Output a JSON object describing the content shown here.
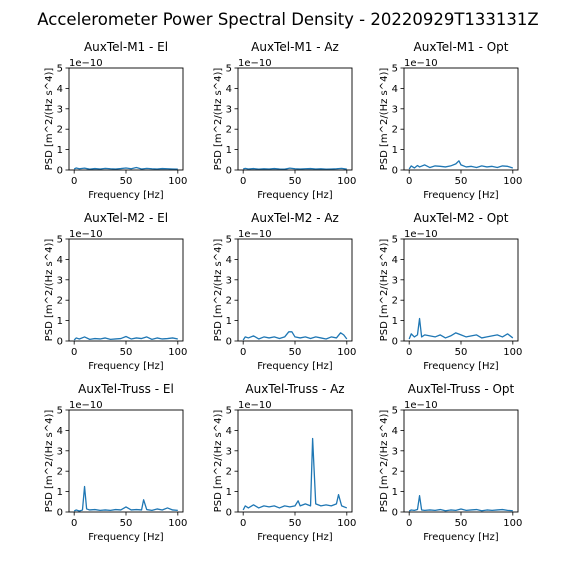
{
  "figure": {
    "title": "Accelerometer Power Spectral Density - 20220929T133131Z",
    "line_color": "#1f77b4"
  },
  "chart_data": [
    {
      "type": "line",
      "title": "AuxTel-M1 - El",
      "xlabel": "Frequency [Hz]",
      "ylabel": "PSD [m^2/(Hz s^4)]",
      "y_offset_label": "1e−10",
      "xlim": [
        -5,
        105
      ],
      "ylim": [
        0,
        5
      ],
      "xticks": [
        0,
        50,
        100
      ],
      "yticks": [
        0,
        1,
        2,
        3,
        4,
        5
      ],
      "x": [
        0,
        2,
        5,
        10,
        15,
        20,
        25,
        30,
        35,
        40,
        45,
        50,
        55,
        60,
        65,
        70,
        75,
        80,
        85,
        90,
        95,
        100
      ],
      "y": [
        0.05,
        0.1,
        0.06,
        0.09,
        0.04,
        0.07,
        0.05,
        0.08,
        0.06,
        0.05,
        0.07,
        0.1,
        0.06,
        0.12,
        0.05,
        0.08,
        0.06,
        0.05,
        0.07,
        0.06,
        0.05,
        0.04
      ]
    },
    {
      "type": "line",
      "title": "AuxTel-M1 - Az",
      "xlabel": "Frequency [Hz]",
      "ylabel": "PSD [m^2/(Hz s^4)]",
      "y_offset_label": "1e−10",
      "xlim": [
        -5,
        105
      ],
      "ylim": [
        0,
        5
      ],
      "xticks": [
        0,
        50,
        100
      ],
      "yticks": [
        0,
        1,
        2,
        3,
        4,
        5
      ],
      "x": [
        0,
        2,
        5,
        10,
        15,
        20,
        25,
        30,
        35,
        40,
        45,
        50,
        55,
        60,
        65,
        70,
        75,
        80,
        85,
        90,
        95,
        100
      ],
      "y": [
        0.05,
        0.08,
        0.05,
        0.07,
        0.04,
        0.06,
        0.05,
        0.07,
        0.05,
        0.04,
        0.09,
        0.06,
        0.05,
        0.06,
        0.07,
        0.05,
        0.06,
        0.04,
        0.05,
        0.06,
        0.08,
        0.04
      ]
    },
    {
      "type": "line",
      "title": "AuxTel-M1 - Opt",
      "xlabel": "Frequency [Hz]",
      "ylabel": "PSD [m^2/(Hz s^4)]",
      "y_offset_label": "1e−10",
      "xlim": [
        -5,
        105
      ],
      "ylim": [
        0,
        5
      ],
      "xticks": [
        0,
        50,
        100
      ],
      "yticks": [
        0,
        1,
        2,
        3,
        4,
        5
      ],
      "x": [
        0,
        2,
        5,
        8,
        10,
        15,
        20,
        25,
        30,
        35,
        40,
        45,
        48,
        50,
        55,
        60,
        65,
        70,
        75,
        80,
        85,
        90,
        95,
        100
      ],
      "y": [
        0.05,
        0.2,
        0.1,
        0.22,
        0.15,
        0.25,
        0.12,
        0.2,
        0.18,
        0.15,
        0.2,
        0.3,
        0.45,
        0.25,
        0.15,
        0.18,
        0.12,
        0.2,
        0.15,
        0.18,
        0.12,
        0.2,
        0.18,
        0.1
      ]
    },
    {
      "type": "line",
      "title": "AuxTel-M2 - El",
      "xlabel": "Frequency [Hz]",
      "ylabel": "PSD [m^2/(Hz s^4)]",
      "y_offset_label": "1e−10",
      "xlim": [
        -5,
        105
      ],
      "ylim": [
        0,
        5
      ],
      "xticks": [
        0,
        50,
        100
      ],
      "yticks": [
        0,
        1,
        2,
        3,
        4,
        5
      ],
      "x": [
        0,
        2,
        5,
        10,
        15,
        20,
        25,
        30,
        35,
        40,
        45,
        50,
        55,
        60,
        65,
        70,
        75,
        80,
        85,
        90,
        95,
        100
      ],
      "y": [
        0.05,
        0.15,
        0.1,
        0.2,
        0.08,
        0.12,
        0.1,
        0.15,
        0.08,
        0.1,
        0.12,
        0.22,
        0.1,
        0.15,
        0.12,
        0.2,
        0.08,
        0.15,
        0.1,
        0.12,
        0.15,
        0.1
      ]
    },
    {
      "type": "line",
      "title": "AuxTel-M2 - Az",
      "xlabel": "Frequency [Hz]",
      "ylabel": "PSD [m^2/(Hz s^4)]",
      "y_offset_label": "1e−10",
      "xlim": [
        -5,
        105
      ],
      "ylim": [
        0,
        5
      ],
      "xticks": [
        0,
        50,
        100
      ],
      "yticks": [
        0,
        1,
        2,
        3,
        4,
        5
      ],
      "x": [
        0,
        2,
        5,
        10,
        15,
        20,
        25,
        30,
        35,
        40,
        44,
        47,
        50,
        55,
        60,
        65,
        70,
        75,
        80,
        85,
        90,
        94,
        97,
        100
      ],
      "y": [
        0.05,
        0.2,
        0.15,
        0.25,
        0.1,
        0.2,
        0.15,
        0.2,
        0.12,
        0.2,
        0.45,
        0.45,
        0.2,
        0.15,
        0.2,
        0.12,
        0.2,
        0.15,
        0.1,
        0.2,
        0.15,
        0.4,
        0.3,
        0.1
      ]
    },
    {
      "type": "line",
      "title": "AuxTel-M2 - Opt",
      "xlabel": "Frequency [Hz]",
      "ylabel": "PSD [m^2/(Hz s^4)]",
      "y_offset_label": "1e−10",
      "xlim": [
        -5,
        105
      ],
      "ylim": [
        0,
        5
      ],
      "xticks": [
        0,
        50,
        100
      ],
      "yticks": [
        0,
        1,
        2,
        3,
        4,
        5
      ],
      "x": [
        0,
        2,
        5,
        8,
        10,
        12,
        15,
        20,
        25,
        30,
        35,
        40,
        45,
        50,
        55,
        60,
        65,
        70,
        75,
        80,
        85,
        90,
        95,
        100
      ],
      "y": [
        0.1,
        0.35,
        0.2,
        0.3,
        1.1,
        0.2,
        0.3,
        0.25,
        0.2,
        0.3,
        0.15,
        0.25,
        0.4,
        0.3,
        0.2,
        0.25,
        0.3,
        0.15,
        0.2,
        0.25,
        0.3,
        0.2,
        0.35,
        0.15
      ]
    },
    {
      "type": "line",
      "title": "AuxTel-Truss - El",
      "xlabel": "Frequency [Hz]",
      "ylabel": "PSD [m^2/(Hz s^4)]",
      "y_offset_label": "1e−10",
      "xlim": [
        -5,
        105
      ],
      "ylim": [
        0,
        5
      ],
      "xticks": [
        0,
        50,
        100
      ],
      "yticks": [
        0,
        1,
        2,
        3,
        4,
        5
      ],
      "x": [
        0,
        2,
        5,
        8,
        10,
        12,
        15,
        20,
        25,
        30,
        35,
        40,
        45,
        50,
        55,
        60,
        65,
        67,
        70,
        75,
        80,
        85,
        90,
        95,
        100
      ],
      "y": [
        0.05,
        0.1,
        0.05,
        0.1,
        1.25,
        0.15,
        0.1,
        0.12,
        0.08,
        0.1,
        0.08,
        0.12,
        0.1,
        0.25,
        0.1,
        0.12,
        0.1,
        0.6,
        0.12,
        0.08,
        0.15,
        0.1,
        0.2,
        0.1,
        0.08
      ]
    },
    {
      "type": "line",
      "title": "AuxTel-Truss - Az",
      "xlabel": "Frequency [Hz]",
      "ylabel": "PSD [m^2/(Hz s^4)]",
      "y_offset_label": "1e−10",
      "xlim": [
        -5,
        105
      ],
      "ylim": [
        0,
        5
      ],
      "xticks": [
        0,
        50,
        100
      ],
      "yticks": [
        0,
        1,
        2,
        3,
        4,
        5
      ],
      "x": [
        0,
        2,
        5,
        10,
        15,
        20,
        25,
        30,
        35,
        40,
        45,
        50,
        53,
        55,
        60,
        65,
        67,
        70,
        75,
        80,
        85,
        90,
        92,
        95,
        100
      ],
      "y": [
        0.1,
        0.3,
        0.2,
        0.35,
        0.2,
        0.3,
        0.25,
        0.3,
        0.2,
        0.3,
        0.25,
        0.3,
        0.55,
        0.3,
        0.4,
        0.3,
        3.6,
        0.4,
        0.3,
        0.35,
        0.3,
        0.4,
        0.85,
        0.3,
        0.2
      ]
    },
    {
      "type": "line",
      "title": "AuxTel-Truss - Opt",
      "xlabel": "Frequency [Hz]",
      "ylabel": "PSD [m^2/(Hz s^4)]",
      "y_offset_label": "1e−10",
      "xlim": [
        -5,
        105
      ],
      "ylim": [
        0,
        5
      ],
      "xticks": [
        0,
        50,
        100
      ],
      "yticks": [
        0,
        1,
        2,
        3,
        4,
        5
      ],
      "x": [
        0,
        2,
        5,
        8,
        10,
        12,
        15,
        20,
        25,
        30,
        35,
        40,
        45,
        50,
        55,
        60,
        65,
        70,
        75,
        80,
        85,
        90,
        95,
        100
      ],
      "y": [
        0.05,
        0.1,
        0.08,
        0.12,
        0.8,
        0.1,
        0.08,
        0.1,
        0.08,
        0.12,
        0.06,
        0.1,
        0.08,
        0.15,
        0.08,
        0.1,
        0.12,
        0.06,
        0.1,
        0.08,
        0.1,
        0.12,
        0.08,
        0.06
      ]
    }
  ]
}
